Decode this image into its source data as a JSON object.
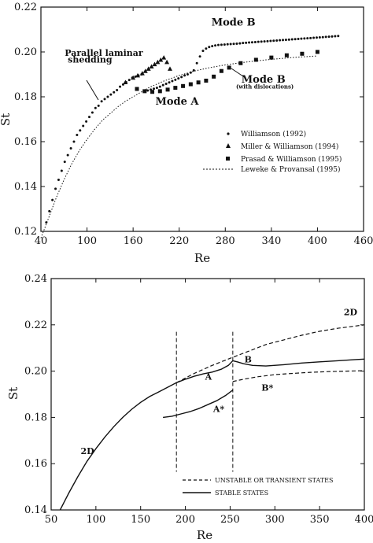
{
  "chart_data": [
    {
      "type": "scatter",
      "xlabel": "Re",
      "ylabel": "St",
      "xlim": [
        40,
        460
      ],
      "ylim": [
        0.12,
        0.22
      ],
      "xticks": [
        "40",
        "100",
        "160",
        "220",
        "280",
        "340",
        "400",
        "460"
      ],
      "xtick_values": [
        40,
        100,
        160,
        220,
        280,
        340,
        400,
        460
      ],
      "yticks": [
        "0.12",
        "0.14",
        "0.16",
        "0.18",
        "0.20",
        "0.22"
      ],
      "ytick_values": [
        0.12,
        0.14,
        0.16,
        0.18,
        0.2,
        0.22
      ],
      "annotations": [
        {
          "text": "Mode B",
          "x": 262,
          "y": 0.2118
        },
        {
          "text": "Parallel laminar",
          "x": 71,
          "y": 0.1983
        },
        {
          "text": "shedding",
          "x": 75,
          "y": 0.1953
        },
        {
          "text": "Mode B",
          "x": 301,
          "y": 0.1863
        },
        {
          "text": "(with dislocations)",
          "x": 294,
          "y": 0.1837
        },
        {
          "text": "Mode A",
          "x": 189,
          "y": 0.1765
        }
      ],
      "legend_position": "lower-right",
      "series": [
        {
          "name": "Williamson (1992)",
          "marker": "dot",
          "x": [
            47,
            51,
            55,
            59,
            63,
            67,
            71,
            75,
            79,
            83,
            87,
            91,
            95,
            99,
            103,
            107,
            111,
            115,
            119,
            123,
            127,
            131,
            135,
            139,
            143,
            147,
            151,
            155,
            159,
            163,
            167,
            171,
            175,
            179,
            183,
            187,
            191,
            195,
            199,
            203,
            207,
            211,
            215,
            219,
            223,
            227,
            231,
            235,
            239,
            243,
            247,
            251,
            255,
            259,
            263,
            267,
            271,
            275,
            279,
            283,
            287,
            291,
            295,
            299,
            303,
            307,
            311,
            315,
            319,
            323,
            327,
            331,
            335,
            339,
            343,
            347,
            351,
            355,
            359,
            363,
            367,
            371,
            375,
            379,
            383,
            387,
            391,
            395,
            399,
            403,
            407,
            411,
            415,
            419,
            423,
            427
          ],
          "y": [
            0.124,
            0.129,
            0.134,
            0.139,
            0.143,
            0.147,
            0.151,
            0.154,
            0.157,
            0.16,
            0.163,
            0.165,
            0.167,
            0.169,
            0.171,
            0.173,
            0.175,
            0.176,
            0.178,
            0.179,
            0.18,
            0.181,
            0.182,
            0.183,
            0.1845,
            0.1855,
            0.1865,
            0.1875,
            0.1885,
            0.189,
            0.1895,
            0.19,
            0.1825,
            0.1828,
            0.1832,
            0.1836,
            0.184,
            0.1845,
            0.1852,
            0.1858,
            0.1864,
            0.187,
            0.1876,
            0.1882,
            0.1888,
            0.1895,
            0.19,
            0.1908,
            0.1918,
            0.195,
            0.198,
            0.2005,
            0.2015,
            0.2022,
            0.2026,
            0.2029,
            0.2031,
            0.2032,
            0.2033,
            0.2034,
            0.2035,
            0.2036,
            0.2037,
            0.2038,
            0.204,
            0.2041,
            0.2042,
            0.2043,
            0.2044,
            0.2045,
            0.2046,
            0.2047,
            0.2048,
            0.2049,
            0.205,
            0.2051,
            0.2052,
            0.2053,
            0.2054,
            0.2055,
            0.2056,
            0.2057,
            0.2058,
            0.2059,
            0.206,
            0.2061,
            0.2062,
            0.2063,
            0.2064,
            0.2065,
            0.2066,
            0.2067,
            0.2068,
            0.2069,
            0.207,
            0.2071
          ]
        },
        {
          "name": "Miller & Williamson (1994)",
          "marker": "triangle",
          "x": [
            150,
            160,
            166,
            172,
            176,
            180,
            184,
            188,
            192,
            196,
            200,
            204,
            208
          ],
          "y": [
            0.1865,
            0.1885,
            0.1895,
            0.1905,
            0.1915,
            0.1925,
            0.1935,
            0.1945,
            0.1955,
            0.1965,
            0.1975,
            0.1955,
            0.1925
          ]
        },
        {
          "name": "Prasad & Williamson (1995)",
          "marker": "square",
          "x": [
            165,
            175,
            185,
            195,
            205,
            215,
            225,
            235,
            245,
            255,
            265,
            275,
            285,
            300,
            320,
            340,
            360,
            380,
            400
          ],
          "y": [
            0.1835,
            0.1825,
            0.1822,
            0.1825,
            0.1832,
            0.184,
            0.1848,
            0.1856,
            0.1864,
            0.1872,
            0.189,
            0.1915,
            0.193,
            0.195,
            0.1965,
            0.1975,
            0.1985,
            0.1992,
            0.2
          ]
        },
        {
          "name": "Leweke & Provansal (1995)",
          "marker": "dotted-line",
          "x": [
            40,
            50,
            60,
            70,
            80,
            90,
            100,
            110,
            120,
            130,
            140,
            150,
            160,
            170,
            180,
            190,
            200,
            220,
            240,
            260,
            280,
            300,
            320,
            340,
            360,
            380,
            400
          ],
          "y": [
            0.117,
            0.126,
            0.135,
            0.143,
            0.15,
            0.156,
            0.161,
            0.1655,
            0.1695,
            0.1725,
            0.1755,
            0.178,
            0.18,
            0.182,
            0.184,
            0.1855,
            0.187,
            0.1895,
            0.1915,
            0.193,
            0.1942,
            0.1952,
            0.196,
            0.1967,
            0.1973,
            0.1978,
            0.1982
          ]
        }
      ]
    },
    {
      "type": "line",
      "xlabel": "Re",
      "ylabel": "St",
      "xlim": [
        50,
        400
      ],
      "ylim": [
        0.14,
        0.24
      ],
      "xticks": [
        "50",
        "100",
        "150",
        "200",
        "250",
        "300",
        "350",
        "400"
      ],
      "xtick_values": [
        50,
        100,
        150,
        200,
        250,
        300,
        350,
        400
      ],
      "yticks": [
        "0.14",
        "0.16",
        "0.18",
        "0.20",
        "0.22",
        "0.24"
      ],
      "ytick_values": [
        0.14,
        0.16,
        0.18,
        0.2,
        0.22,
        0.24
      ],
      "vlines": [
        190,
        253
      ],
      "annotations": [
        {
          "text": "2D",
          "x": 377,
          "y": 0.2242
        },
        {
          "text": "A",
          "x": 222,
          "y": 0.1963
        },
        {
          "text": "B",
          "x": 266,
          "y": 0.2038
        },
        {
          "text": "A*",
          "x": 231,
          "y": 0.1823
        },
        {
          "text": "B*",
          "x": 285,
          "y": 0.1915
        },
        {
          "text": "2D",
          "x": 83,
          "y": 0.1642
        }
      ],
      "legend_position": "lower-right",
      "series": [
        {
          "name": "UNSTABLE OR TRANSIENT STATES",
          "style": "dashed",
          "x": [
            190,
            210,
            230,
            253,
            270,
            290,
            310,
            330,
            350,
            370,
            390,
            400
          ],
          "y": [
            0.195,
            0.199,
            0.2025,
            0.206,
            0.2085,
            0.2115,
            0.2135,
            0.2155,
            0.2172,
            0.2185,
            0.2195,
            0.22
          ]
        },
        {
          "name": "UNSTABLE OR TRANSIENT STATES",
          "style": "dashed",
          "x": [
            253,
            265,
            280,
            300,
            320,
            340,
            360,
            380,
            400
          ],
          "y": [
            0.1955,
            0.1965,
            0.1975,
            0.1985,
            0.199,
            0.1995,
            0.1998,
            0.2,
            0.2002
          ]
        },
        {
          "name": "STABLE STATES",
          "style": "solid",
          "x": [
            60,
            70,
            80,
            90,
            100,
            110,
            120,
            130,
            140,
            150,
            160,
            170,
            180,
            190,
            200,
            210,
            220,
            230,
            240,
            248,
            253,
            258,
            265,
            275,
            290,
            310,
            330,
            350,
            370,
            390,
            400
          ],
          "y": [
            0.14,
            0.1475,
            0.1545,
            0.161,
            0.1665,
            0.1715,
            0.176,
            0.18,
            0.1835,
            0.1865,
            0.189,
            0.191,
            0.193,
            0.195,
            0.1965,
            0.1978,
            0.1988,
            0.1996,
            0.2008,
            0.2025,
            0.2045,
            0.204,
            0.2032,
            0.2025,
            0.2022,
            0.2028,
            0.2035,
            0.204,
            0.2045,
            0.205,
            0.2052
          ]
        },
        {
          "name": "STABLE STATES",
          "style": "solid",
          "x": [
            175,
            185,
            195,
            205,
            215,
            225,
            235,
            245,
            253
          ],
          "y": [
            0.18,
            0.1805,
            0.1815,
            0.1825,
            0.1838,
            0.1855,
            0.1872,
            0.1895,
            0.1918
          ]
        }
      ]
    }
  ]
}
